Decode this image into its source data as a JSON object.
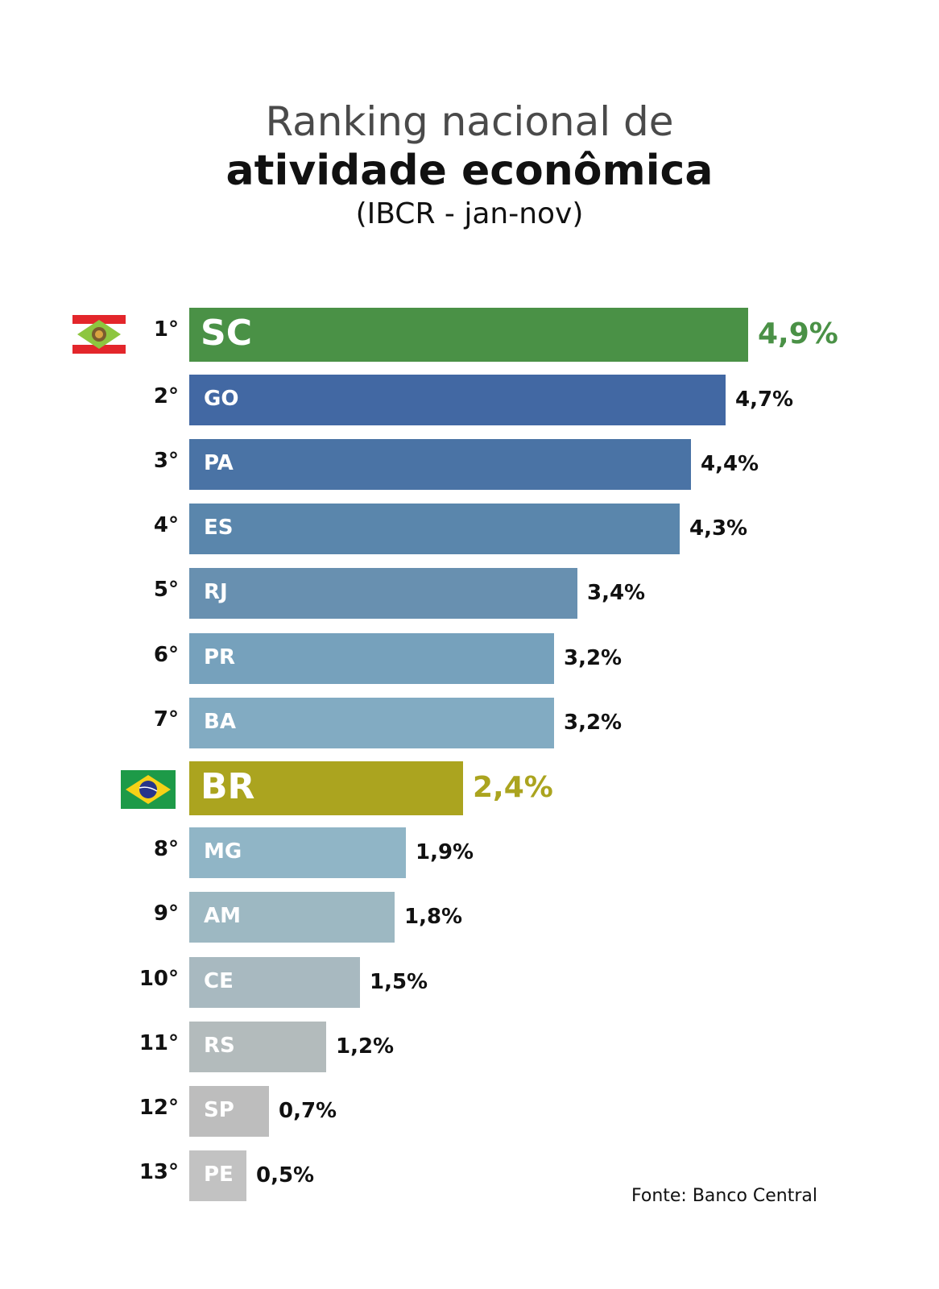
{
  "title_line1": "Ranking nacional de",
  "title_line2": "atividade econômica",
  "subtitle": "(IBCR - jan-nov)",
  "source": "Fonte: Banco Central",
  "chart_data": {
    "type": "bar",
    "orientation": "horizontal",
    "title": "Ranking nacional de atividade econômica",
    "subtitle": "(IBCR - jan-nov)",
    "categories": [
      "SC",
      "GO",
      "PA",
      "ES",
      "RJ",
      "PR",
      "BA",
      "BR",
      "MG",
      "AM",
      "CE",
      "RS",
      "SP",
      "PE"
    ],
    "ranks": [
      "1°",
      "2°",
      "3°",
      "4°",
      "5°",
      "6°",
      "7°",
      "",
      "8°",
      "9°",
      "10°",
      "11°",
      "12°",
      "13°"
    ],
    "values": [
      4.9,
      4.7,
      4.4,
      4.3,
      3.4,
      3.2,
      3.2,
      2.4,
      1.9,
      1.8,
      1.5,
      1.2,
      0.7,
      0.5
    ],
    "value_labels": [
      "4,9%",
      "4,7%",
      "4,4%",
      "4,3%",
      "3,4%",
      "3,2%",
      "3,2%",
      "2,4%",
      "1,9%",
      "1,8%",
      "1,5%",
      "1,2%",
      "0,7%",
      "0,5%"
    ],
    "colors": [
      "#4a9146",
      "#4268a3",
      "#4a73a5",
      "#5a86ac",
      "#6890b0",
      "#76a1bc",
      "#82abc2",
      "#aba41f",
      "#90b5c6",
      "#9db8c2",
      "#a8b9c0",
      "#b3bbbc",
      "#bdbdbd",
      "#c2c2c2"
    ],
    "highlight": {
      "SC": {
        "value_color": "#4a9146",
        "flag": "santa-catarina-flag"
      },
      "BR": {
        "value_color": "#aba41f",
        "flag": "brazil-flag"
      }
    },
    "xlim": [
      0,
      4.9
    ],
    "grid": false,
    "legend": "none"
  }
}
